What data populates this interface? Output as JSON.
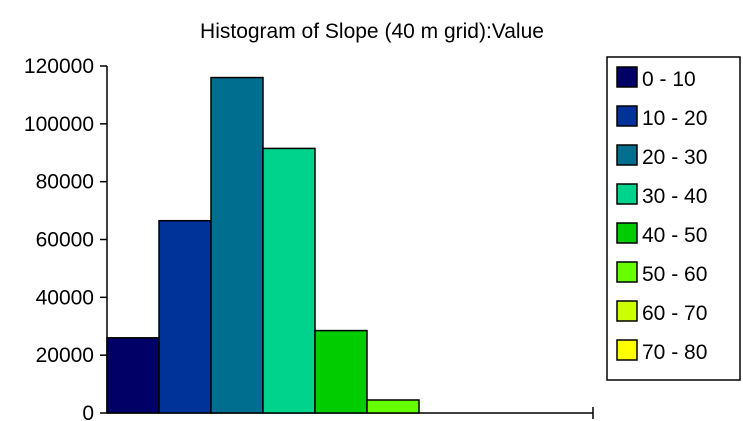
{
  "chart_data": {
    "type": "bar",
    "title": "Histogram of Slope (40 m grid):Value",
    "xlabel": "",
    "ylabel": "",
    "categories": [
      "0 - 10",
      "10 - 20",
      "20 - 30",
      "30 - 40",
      "40 - 50",
      "50 - 60",
      "60 - 70",
      "70 - 80"
    ],
    "values": [
      26000,
      66500,
      116000,
      91500,
      28500,
      4500,
      0,
      0
    ],
    "colors": [
      "#000066",
      "#003399",
      "#006f8f",
      "#00d48c",
      "#00cc00",
      "#66ff00",
      "#ccff00",
      "#ffff00"
    ],
    "ylim": [
      0,
      120000
    ],
    "yticks": [
      "0",
      "20000",
      "40000",
      "60000",
      "80000",
      "100000",
      "120000"
    ],
    "grid": false,
    "legend_position": "right"
  }
}
